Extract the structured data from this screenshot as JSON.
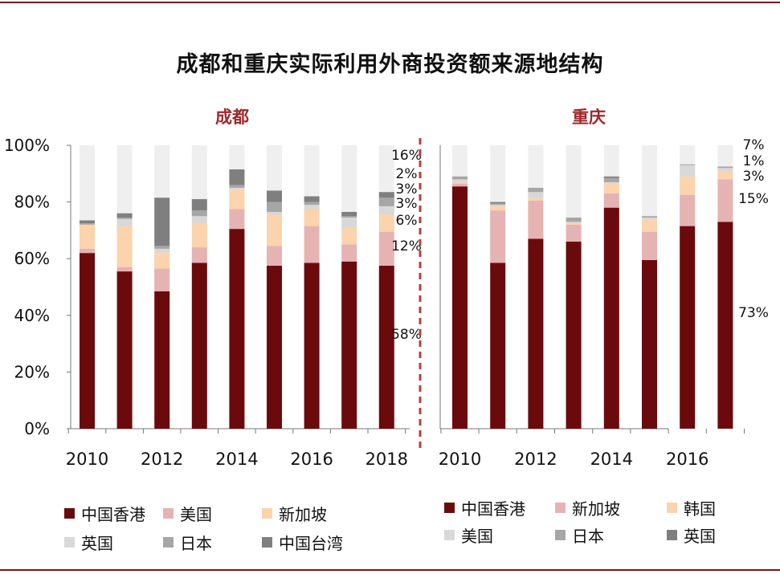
{
  "title": "成都和重庆实际利用外商投资额来源地结构",
  "colors": {
    "rule": "#7a1518",
    "divider": "#b5413e",
    "subtitle": "#9b2a2a",
    "hongkong": "#6b0a0d",
    "usa_cd": "#e6b3b3",
    "singapore_cd": "#fbd4ad",
    "uk_cd": "#d8d8d8",
    "japan": "#a6a6a6",
    "taiwan": "#7f7f7f",
    "singapore_cq": "#e6b3b3",
    "korea_cq": "#fbd4ad",
    "usa_cq": "#d8d8d8",
    "uk_cq": "#7f7f7f",
    "rest": "#efefef"
  },
  "chart_data": [
    {
      "type": "bar",
      "stacked": true,
      "title": "成都",
      "x": [
        2010,
        2011,
        2012,
        2013,
        2014,
        2015,
        2016,
        2017,
        2018
      ],
      "x_tick_labels": [
        "2010",
        "2012",
        "2014",
        "2016",
        "2018"
      ],
      "y_tick_labels": [
        "0%",
        "20%",
        "40%",
        "60%",
        "80%",
        "100%"
      ],
      "ylim": [
        0,
        100
      ],
      "series": [
        {
          "name": "中国香港",
          "color_key": "hongkong",
          "values": [
            62,
            55.5,
            48.5,
            58.5,
            70.5,
            57.5,
            58.5,
            59,
            57.5
          ]
        },
        {
          "name": "美国",
          "color_key": "usa_cd",
          "values": [
            1.5,
            1.5,
            8,
            5.5,
            7,
            7,
            13,
            6,
            12
          ]
        },
        {
          "name": "新加坡",
          "color_key": "singapore_cd",
          "values": [
            8.5,
            14.5,
            5.5,
            8.5,
            7,
            11,
            6,
            6,
            6
          ]
        },
        {
          "name": "英国",
          "color_key": "uk_cd",
          "values": [
            0,
            2.5,
            1.5,
            2.5,
            0.5,
            1,
            1.5,
            3.5,
            3
          ]
        },
        {
          "name": "日本",
          "color_key": "japan",
          "values": [
            0.5,
            0.5,
            1,
            2,
            1,
            3.5,
            1,
            0.5,
            3
          ]
        },
        {
          "name": "中国台湾",
          "color_key": "taiwan",
          "values": [
            1,
            1.5,
            17,
            4,
            5.5,
            4,
            2,
            1.5,
            2
          ]
        }
      ],
      "value_labels": [
        "16%",
        "2%",
        "3%",
        "3%",
        "6%",
        "12%",
        "58%"
      ]
    },
    {
      "type": "bar",
      "stacked": true,
      "title": "重庆",
      "x": [
        2010,
        2011,
        2012,
        2013,
        2014,
        2015,
        2016,
        2017
      ],
      "x_tick_labels": [
        "2010",
        "2012",
        "2014",
        "2016"
      ],
      "ylim": [
        0,
        100
      ],
      "series": [
        {
          "name": "中国香港",
          "color_key": "hongkong",
          "values": [
            85.5,
            58.5,
            67,
            66,
            78,
            59.5,
            71.5,
            73
          ]
        },
        {
          "name": "新加坡",
          "color_key": "singapore_cq",
          "values": [
            1,
            18.5,
            13.5,
            6,
            5,
            10,
            11,
            15
          ]
        },
        {
          "name": "韩国",
          "color_key": "korea_cq",
          "values": [
            0.5,
            1.5,
            1,
            0.5,
            3.5,
            4.5,
            6.5,
            3
          ]
        },
        {
          "name": "美国",
          "color_key": "usa_cq",
          "values": [
            1,
            0.5,
            2,
            0.5,
            0.5,
            0.5,
            4,
            1
          ]
        },
        {
          "name": "日本",
          "color_key": "japan",
          "values": [
            1,
            0.5,
            1.5,
            1.5,
            1.5,
            0.5,
            0.3,
            0.5
          ]
        },
        {
          "name": "英国",
          "color_key": "uk_cq",
          "values": [
            0,
            0.5,
            0,
            0,
            0.5,
            0,
            0,
            0
          ]
        }
      ],
      "value_labels": [
        "7%",
        "1%",
        "3%",
        "15%",
        "73%"
      ]
    }
  ],
  "legend_chengdu": [
    "中国香港",
    "美国",
    "新加坡",
    "英国",
    "日本",
    "中国台湾"
  ],
  "legend_chongqing": [
    "中国香港",
    "新加坡",
    "韩国",
    "美国",
    "日本",
    "英国"
  ]
}
